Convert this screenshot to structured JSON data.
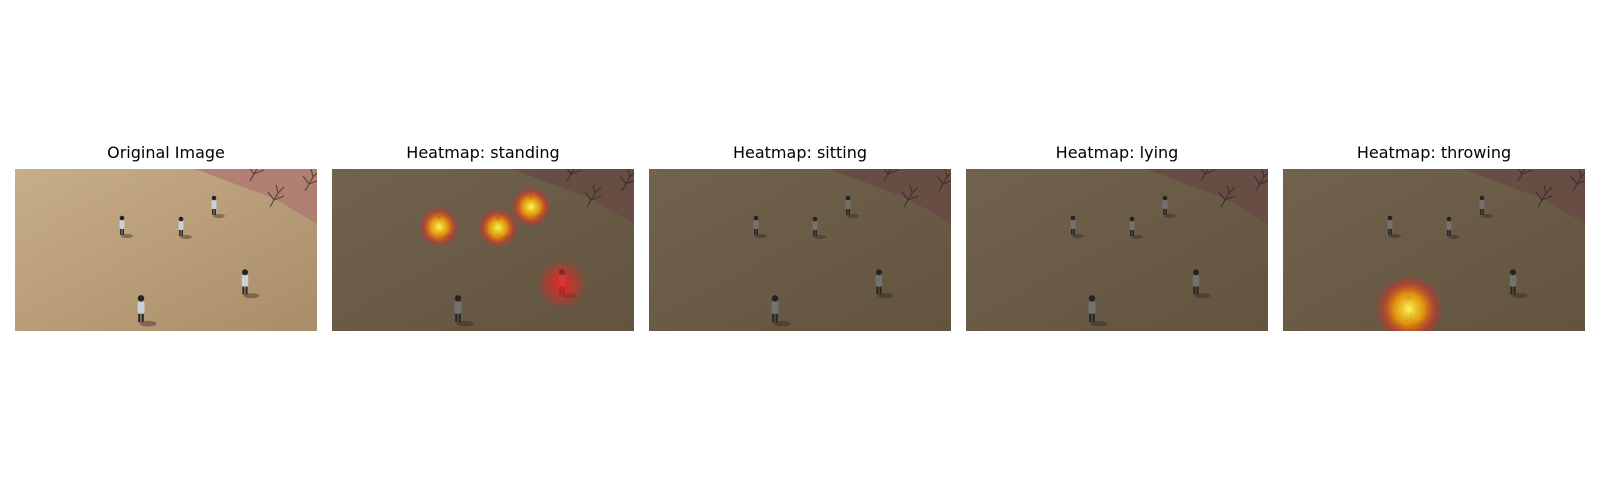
{
  "figure": {
    "panels": [
      {
        "title": "Original Image",
        "heatmap": null
      },
      {
        "title": "Heatmap: standing",
        "heatmap": "standing"
      },
      {
        "title": "Heatmap: sitting",
        "heatmap": "sitting"
      },
      {
        "title": "Heatmap: lying",
        "heatmap": "lying"
      },
      {
        "title": "Heatmap: throwing",
        "heatmap": "throwing"
      }
    ]
  },
  "colors": {
    "grass": "#c8ae88",
    "grass_dark": "#a88d68",
    "path": "#b07a72",
    "dim_overlay": "#2a241e",
    "heat_core": "#ffff50",
    "heat_mid": "#ffa000",
    "heat_edge": "#ff2020"
  }
}
